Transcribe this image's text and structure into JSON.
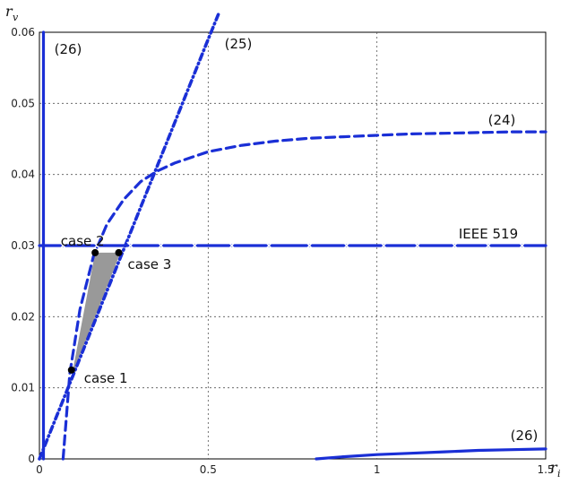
{
  "chart_data": {
    "type": "line",
    "xlabel": "r",
    "xlabel_sub": "i",
    "ylabel": "r",
    "ylabel_sub": "v",
    "xlim": [
      0,
      1.5
    ],
    "ylim": [
      0,
      0.06
    ],
    "xticks": [
      0,
      0.5,
      1,
      1.5
    ],
    "yticks": [
      0,
      0.01,
      0.02,
      0.03,
      0.04,
      0.05,
      0.06
    ],
    "xtick_labels": [
      "0",
      "0.5",
      "1",
      "1.5"
    ],
    "ytick_labels": [
      "0",
      "0.01",
      "0.02",
      "0.03",
      "0.04",
      "0.05",
      "0.06"
    ],
    "grid": true,
    "colors": {
      "curve": "#1a2fd6",
      "fill": "#999999",
      "point": "#000000",
      "grid": "#555555"
    },
    "series": [
      {
        "name": "(24)",
        "style": "dashed",
        "x": [
          0.07,
          0.09,
          0.12,
          0.16,
          0.2,
          0.25,
          0.3,
          0.35,
          0.4,
          0.5,
          0.6,
          0.7,
          0.8,
          0.9,
          1.0,
          1.1,
          1.2,
          1.3,
          1.4,
          1.5
        ],
        "y": [
          0.0,
          0.012,
          0.021,
          0.0285,
          0.033,
          0.0365,
          0.039,
          0.0405,
          0.0416,
          0.0432,
          0.0441,
          0.0447,
          0.0451,
          0.0453,
          0.0455,
          0.0457,
          0.0458,
          0.0459,
          0.046,
          0.046
        ]
      },
      {
        "name": "(25)",
        "style": "dash-dot",
        "x": [
          0.0,
          0.1,
          0.2,
          0.3,
          0.4,
          0.5,
          0.53
        ],
        "y": [
          0.0,
          0.0118,
          0.0236,
          0.0354,
          0.0472,
          0.059,
          0.0625
        ]
      },
      {
        "name": "(26)",
        "style": "solid",
        "x": [
          0.82,
          0.9,
          1.0,
          1.1,
          1.2,
          1.3,
          1.4,
          1.5
        ],
        "y": [
          0.0,
          0.0003,
          0.0006,
          0.0008,
          0.001,
          0.0012,
          0.0013,
          0.0014
        ]
      },
      {
        "name": "(26)",
        "style": "solid",
        "x": [
          0.012,
          0.012
        ],
        "y": [
          0.0,
          0.06
        ]
      },
      {
        "name": "IEEE 519",
        "style": "solid-x",
        "x": [
          0,
          1.5
        ],
        "y": [
          0.03,
          0.03
        ],
        "marker_x": [
          0.07,
          0.17,
          0.27,
          0.36,
          0.46,
          0.57,
          0.68,
          0.8,
          0.91,
          1.02,
          1.12,
          1.23,
          1.33,
          1.43
        ]
      }
    ],
    "region": {
      "x": [
        0.095,
        0.165,
        0.24
      ],
      "y": [
        0.0115,
        0.029,
        0.029
      ]
    },
    "annotations": [
      {
        "text": "case 1",
        "x": 0.095,
        "y": 0.0125
      },
      {
        "text": "case 2",
        "x": 0.165,
        "y": 0.029
      },
      {
        "text": "case 3",
        "x": 0.235,
        "y": 0.029
      }
    ]
  }
}
